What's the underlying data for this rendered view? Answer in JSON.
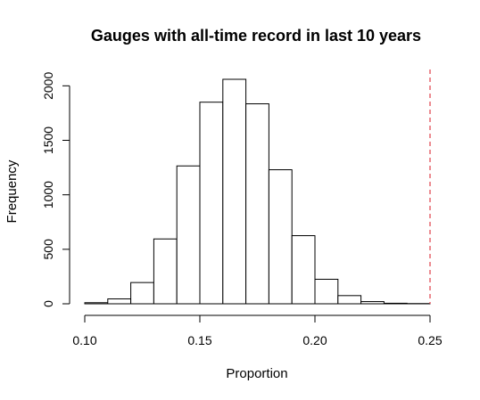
{
  "chart_data": {
    "type": "bar",
    "title": "Gauges with all-time record in last 10 years",
    "xlabel": "Proportion",
    "ylabel": "Frequency",
    "bin_edges": [
      0.1,
      0.11,
      0.12,
      0.13,
      0.14,
      0.15,
      0.16,
      0.17,
      0.18,
      0.19,
      0.2,
      0.21,
      0.22,
      0.23,
      0.24,
      0.25
    ],
    "values": [
      10,
      45,
      195,
      595,
      1265,
      1850,
      2060,
      1835,
      1230,
      625,
      225,
      75,
      20,
      5,
      2
    ],
    "xlim": [
      0.1,
      0.25
    ],
    "ylim": [
      0,
      2060
    ],
    "x_ticks": [
      0.1,
      0.15,
      0.2,
      0.25
    ],
    "x_tick_labels": [
      "0.10",
      "0.15",
      "0.20",
      "0.25"
    ],
    "y_ticks": [
      0,
      500,
      1000,
      1500,
      2000
    ],
    "y_tick_labels": [
      "0",
      "500",
      "1000",
      "1500",
      "2000"
    ],
    "reference_line": {
      "x": 0.25,
      "color": "#e0404a",
      "style": "dashed"
    },
    "grid": false,
    "bar_fill": "#ffffff",
    "bar_edge": "#000000"
  }
}
